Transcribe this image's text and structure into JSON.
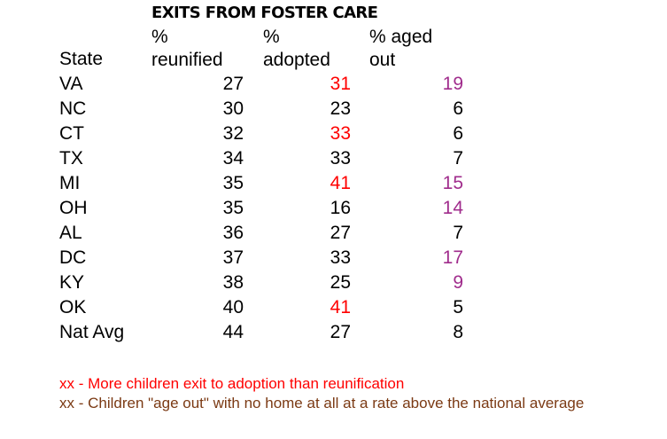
{
  "title": "EXITS FROM FOSTER CARE",
  "colors": {
    "red": "#ff0000",
    "purple": "#a02c8c",
    "brown": "#7b3a14",
    "black": "#000000"
  },
  "headers": {
    "state": {
      "line1": "",
      "line2": "State"
    },
    "reunified": {
      "line1": "%",
      "line2": "reunified"
    },
    "adopted": {
      "line1": "%",
      "line2": "adopted"
    },
    "aged_out": {
      "line1": "% aged",
      "line2": "out"
    }
  },
  "rows": [
    {
      "state": "VA",
      "reunified": "27",
      "adopted": "31",
      "adopted_color": "red",
      "aged_out": "19",
      "aged_color": "purple"
    },
    {
      "state": "NC",
      "reunified": "30",
      "adopted": "23",
      "adopted_color": "black",
      "aged_out": "6",
      "aged_color": "black"
    },
    {
      "state": "CT",
      "reunified": "32",
      "adopted": "33",
      "adopted_color": "red",
      "aged_out": "6",
      "aged_color": "black"
    },
    {
      "state": "TX",
      "reunified": "34",
      "adopted": "33",
      "adopted_color": "black",
      "aged_out": "7",
      "aged_color": "black"
    },
    {
      "state": "MI",
      "reunified": "35",
      "adopted": "41",
      "adopted_color": "red",
      "aged_out": "15",
      "aged_color": "purple"
    },
    {
      "state": "OH",
      "reunified": "35",
      "adopted": "16",
      "adopted_color": "black",
      "aged_out": "14",
      "aged_color": "purple"
    },
    {
      "state": "AL",
      "reunified": "36",
      "adopted": "27",
      "adopted_color": "black",
      "aged_out": "7",
      "aged_color": "black"
    },
    {
      "state": "DC",
      "reunified": "37",
      "adopted": "33",
      "adopted_color": "black",
      "aged_out": "17",
      "aged_color": "purple"
    },
    {
      "state": "KY",
      "reunified": "38",
      "adopted": "25",
      "adopted_color": "black",
      "aged_out": "9",
      "aged_color": "purple"
    },
    {
      "state": "OK",
      "reunified": "40",
      "adopted": "41",
      "adopted_color": "red",
      "aged_out": "5",
      "aged_color": "black"
    },
    {
      "state": "Nat Avg",
      "reunified": "44",
      "adopted": "27",
      "adopted_color": "black",
      "aged_out": "8",
      "aged_color": "black"
    }
  ],
  "legend": [
    {
      "text": "xx - More children exit to adoption than reunification",
      "color": "red"
    },
    {
      "text": "xx - Children \"age out\" with no home at all at a rate above the national average",
      "color": "brown"
    }
  ]
}
